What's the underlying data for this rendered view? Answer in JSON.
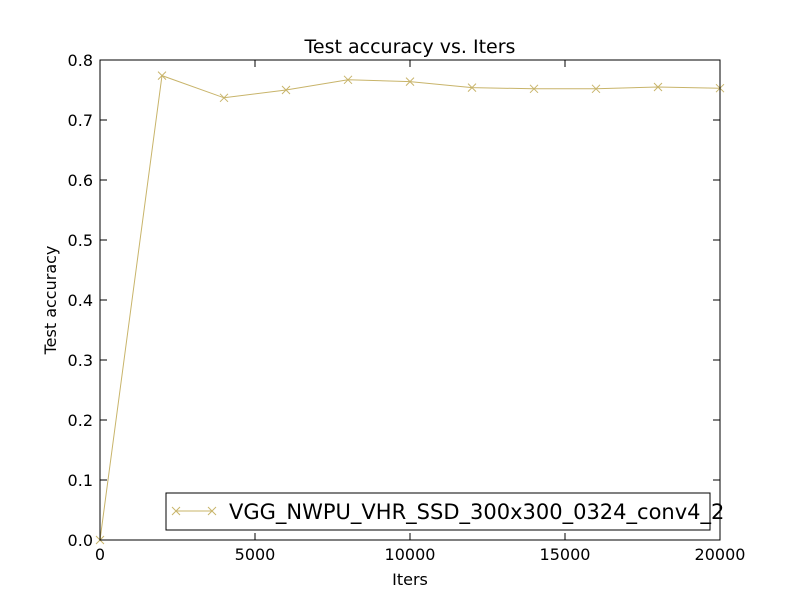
{
  "chart_data": {
    "type": "line",
    "title": "Test accuracy  vs. Iters",
    "xlabel": "Iters",
    "ylabel": "Test accuracy",
    "xlim": [
      0,
      20000
    ],
    "ylim": [
      0.0,
      0.8
    ],
    "xticks": [
      0,
      5000,
      10000,
      15000,
      20000
    ],
    "xtick_labels": [
      "0",
      "5000",
      "10000",
      "15000",
      "20000"
    ],
    "yticks": [
      0.0,
      0.1,
      0.2,
      0.3,
      0.4,
      0.5,
      0.6,
      0.7,
      0.8
    ],
    "ytick_labels": [
      "0.0",
      "0.1",
      "0.2",
      "0.3",
      "0.4",
      "0.5",
      "0.6",
      "0.7",
      "0.8"
    ],
    "grid": false,
    "legend_position": "lower-right",
    "series": [
      {
        "name": "VGG_NWPU_VHR_SSD_300x300_0324_conv4_2",
        "color": "#c8b46a",
        "marker": "x",
        "x": [
          0,
          2000,
          4000,
          6000,
          8000,
          10000,
          12000,
          14000,
          16000,
          18000,
          20000
        ],
        "y": [
          0.0,
          0.774,
          0.737,
          0.75,
          0.767,
          0.764,
          0.754,
          0.752,
          0.752,
          0.755,
          0.753
        ]
      }
    ]
  }
}
